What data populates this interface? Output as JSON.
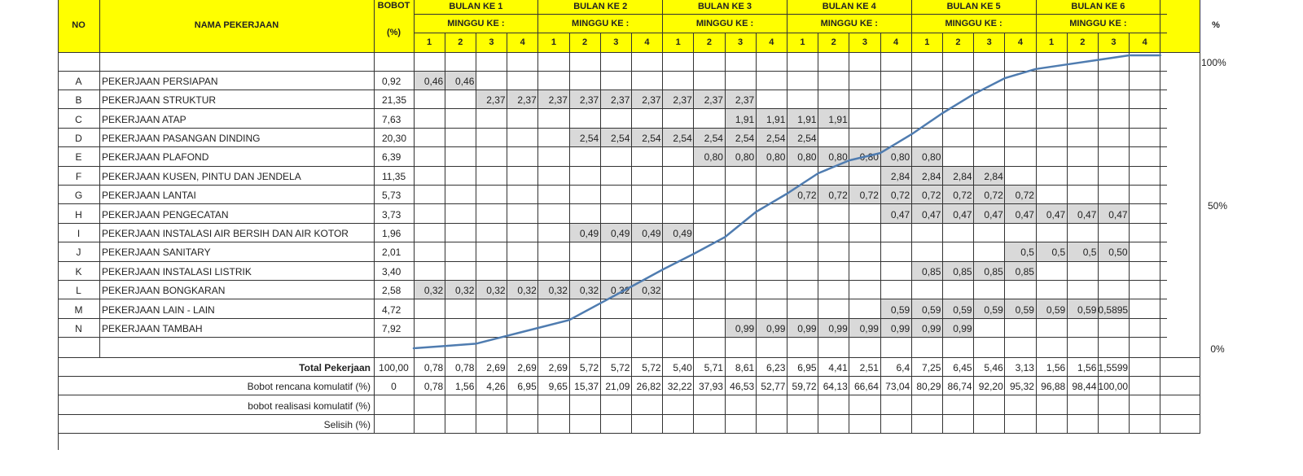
{
  "header": {
    "no": "NO",
    "nama": "NAMA PEKERJAAN",
    "bobot": "BOBOT",
    "bobot_unit": "(%)",
    "percent": "%",
    "months": [
      "BULAN KE 1",
      "BULAN KE 2",
      "BULAN KE 3",
      "BULAN KE 4",
      "BULAN KE 5",
      "BULAN KE 6"
    ],
    "minggu_label": "MINGGU KE :",
    "weeks": [
      "1",
      "2",
      "3",
      "4"
    ]
  },
  "tasks": [
    {
      "no": "A",
      "name": "PEKERJAAN PERSIAPAN",
      "bobot": "0,92",
      "cells": {
        "0": "0,46",
        "1": "0,46"
      }
    },
    {
      "no": "B",
      "name": "PEKERJAAN STRUKTUR",
      "bobot": "21,35",
      "cells": {
        "2": "2,37",
        "3": "2,37",
        "4": "2,37",
        "5": "2,37",
        "6": "2,37",
        "7": "2,37",
        "8": "2,37",
        "9": "2,37",
        "10": "2,37"
      }
    },
    {
      "no": "C",
      "name": "PEKERJAAN ATAP",
      "bobot": "7,63",
      "cells": {
        "10": "1,91",
        "11": "1,91",
        "12": "1,91",
        "13": "1,91"
      }
    },
    {
      "no": "D",
      "name": "PEKERJAAN PASANGAN DINDING",
      "bobot": "20,30",
      "cells": {
        "5": "2,54",
        "6": "2,54",
        "7": "2,54",
        "8": "2,54",
        "9": "2,54",
        "10": "2,54",
        "11": "2,54",
        "12": "2,54"
      }
    },
    {
      "no": "E",
      "name": "PEKERJAAN PLAFOND",
      "bobot": "6,39",
      "cells": {
        "9": "0,80",
        "10": "0,80",
        "11": "0,80",
        "12": "0,80",
        "13": "0,80",
        "14": "0,80",
        "15": "0,80",
        "16": "0,80"
      }
    },
    {
      "no": "F",
      "name": "PEKERJAAN KUSEN, PINTU DAN JENDELA",
      "bobot": "11,35",
      "cells": {
        "15": "2,84",
        "16": "2,84",
        "17": "2,84",
        "18": "2,84"
      }
    },
    {
      "no": "G",
      "name": "PEKERJAAN LANTAI",
      "bobot": "5,73",
      "cells": {
        "12": "0,72",
        "13": "0,72",
        "14": "0,72",
        "15": "0,72",
        "16": "0,72",
        "17": "0,72",
        "18": "0,72",
        "19": "0,72"
      }
    },
    {
      "no": "H",
      "name": "PEKERJAAN PENGECATAN",
      "bobot": "3,73",
      "cells": {
        "15": "0,47",
        "16": "0,47",
        "17": "0,47",
        "18": "0,47",
        "19": "0,47",
        "20": "0,47",
        "21": "0,47",
        "22": "0,47"
      }
    },
    {
      "no": "I",
      "name": "PEKERJAAN INSTALASI AIR BERSIH DAN AIR KOTOR",
      "bobot": "1,96",
      "cells": {
        "5": "0,49",
        "6": "0,49",
        "7": "0,49",
        "8": "0,49"
      }
    },
    {
      "no": "J",
      "name": "PEKERJAAN SANITARY",
      "bobot": "2,01",
      "cells": {
        "19": "0,5",
        "20": "0,5",
        "21": "0,5",
        "22": "0,50"
      }
    },
    {
      "no": "K",
      "name": "PEKERJAAN INSTALASI LISTRIK",
      "bobot": "3,40",
      "cells": {
        "16": "0,85",
        "17": "0,85",
        "18": "0,85",
        "19": "0,85"
      }
    },
    {
      "no": "L",
      "name": "PEKERJAAN BONGKARAN",
      "bobot": "2,58",
      "cells": {
        "0": "0,32",
        "1": "0,32",
        "2": "0,32",
        "3": "0,32",
        "4": "0,32",
        "5": "0,32",
        "6": "0,32",
        "7": "0,32"
      }
    },
    {
      "no": "M",
      "name": "PEKERJAAN LAIN - LAIN",
      "bobot": "4,72",
      "cells": {
        "15": "0,59",
        "16": "0,59",
        "17": "0,59",
        "18": "0,59",
        "19": "0,59",
        "20": "0,59",
        "21": "0,59",
        "22": "0,5895"
      }
    },
    {
      "no": "N",
      "name": "PEKERJAAN TAMBAH",
      "bobot": "7,92",
      "cells": {
        "10": "0,99",
        "11": "0,99",
        "12": "0,99",
        "13": "0,99",
        "14": "0,99",
        "15": "0,99",
        "16": "0,99",
        "17": "0,99"
      }
    }
  ],
  "summary": [
    {
      "label": "Total Pekerjaan",
      "bold": true,
      "bobot": "100,00",
      "values": [
        "0,78",
        "0,78",
        "2,69",
        "2,69",
        "2,69",
        "5,72",
        "5,72",
        "5,72",
        "5,40",
        "5,71",
        "8,61",
        "6,23",
        "6,95",
        "4,41",
        "2,51",
        "6,4",
        "7,25",
        "6,45",
        "5,46",
        "3,13",
        "1,56",
        "1,56",
        "1,5599",
        ""
      ]
    },
    {
      "label": "Bobot rencana komulatif (%)",
      "bold": false,
      "bobot": "0",
      "values": [
        "0,78",
        "1,56",
        "4,26",
        "6,95",
        "9,65",
        "15,37",
        "21,09",
        "26,82",
        "32,22",
        "37,93",
        "46,53",
        "52,77",
        "59,72",
        "64,13",
        "66,64",
        "73,04",
        "80,29",
        "86,74",
        "92,20",
        "95,32",
        "96,88",
        "98,44",
        "100,00",
        ""
      ]
    },
    {
      "label": "bobot realisasi komulatif (%)",
      "bold": false,
      "bobot": "",
      "values": []
    },
    {
      "label": "Selisih (%)",
      "bold": false,
      "bobot": "",
      "values": []
    }
  ],
  "axis_labels": {
    "top": "100%",
    "mid": "50%",
    "bottom": "0%"
  },
  "colors": {
    "header_fill": "#ffff00",
    "bar_fill": "#d9d9d9",
    "curve": "#4f7cb0",
    "grid": "#333333"
  },
  "chart_data": {
    "type": "line",
    "title": "",
    "xlabel": "MINGGU KE :",
    "ylabel": "%",
    "ylim": [
      0,
      100
    ],
    "x": [
      0,
      1,
      2,
      3,
      4,
      5,
      6,
      7,
      8,
      9,
      10,
      11,
      12,
      13,
      14,
      15,
      16,
      17,
      18,
      19,
      20,
      21,
      22,
      23,
      24
    ],
    "series": [
      {
        "values": [
          0,
          0.78,
          1.56,
          4.26,
          6.95,
          9.65,
          15.37,
          21.09,
          26.82,
          32.22,
          37.93,
          46.53,
          52.77,
          59.72,
          64.13,
          66.64,
          73.04,
          80.29,
          86.74,
          92.2,
          95.32,
          96.88,
          98.44,
          100.0,
          100.0
        ]
      }
    ],
    "y_ticks": [
      "0%",
      "50%",
      "100%"
    ]
  }
}
